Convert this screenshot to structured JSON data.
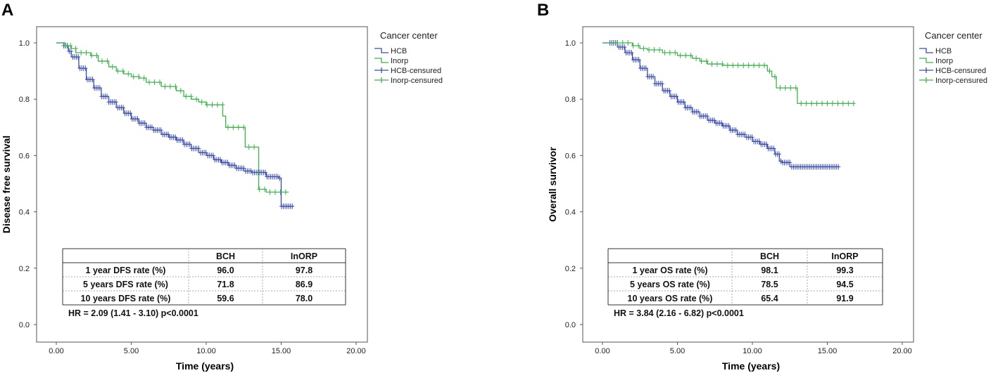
{
  "chart_data": [
    {
      "type": "line",
      "subtype": "kaplan-meier",
      "panel_label": "A",
      "xlabel": "Time (years)",
      "ylabel": "Disease free survival",
      "xlim": [
        0,
        20
      ],
      "ylim": [
        0,
        1.05
      ],
      "x_ticks": [
        "0.00",
        "5.00",
        "10.00",
        "15.00",
        "20.00"
      ],
      "y_ticks": [
        "0.0",
        "0.2",
        "0.4",
        "0.6",
        "0.8",
        "1.0"
      ],
      "legend": {
        "title": "Cancer center",
        "position": "top-right-outside",
        "entries": [
          "HCB",
          "Inorp",
          "HCB-censured",
          "Inorp-censured"
        ]
      },
      "series": [
        {
          "name": "HCB",
          "color": "#3a4cb1",
          "x": [
            0,
            0.5,
            0.8,
            1.0,
            1.5,
            2.0,
            2.5,
            3.0,
            3.5,
            4.0,
            4.5,
            5.0,
            5.5,
            6.0,
            6.5,
            7.0,
            7.5,
            8.0,
            8.5,
            9.0,
            9.5,
            10.0,
            10.5,
            11.0,
            11.5,
            12.0,
            12.5,
            13.0,
            13.5,
            14.0,
            14.8,
            15.0,
            15.8
          ],
          "y": [
            1.0,
            0.99,
            0.97,
            0.95,
            0.91,
            0.87,
            0.84,
            0.81,
            0.79,
            0.77,
            0.75,
            0.73,
            0.715,
            0.7,
            0.69,
            0.675,
            0.665,
            0.655,
            0.64,
            0.625,
            0.61,
            0.6,
            0.585,
            0.575,
            0.565,
            0.555,
            0.545,
            0.54,
            0.54,
            0.525,
            0.52,
            0.42,
            0.42
          ]
        },
        {
          "name": "Inorp",
          "color": "#3cb44b",
          "x": [
            0,
            0.6,
            1.0,
            1.3,
            2.0,
            2.3,
            2.8,
            3.5,
            4.0,
            4.5,
            5.0,
            5.5,
            6.0,
            7.0,
            8.0,
            8.5,
            9.0,
            9.5,
            10.0,
            10.8,
            11.1,
            11.3,
            11.8,
            12.6,
            13.5,
            14.0,
            15.5
          ],
          "y": [
            1.0,
            0.99,
            0.98,
            0.965,
            0.965,
            0.955,
            0.935,
            0.915,
            0.9,
            0.89,
            0.88,
            0.875,
            0.86,
            0.845,
            0.83,
            0.81,
            0.8,
            0.79,
            0.78,
            0.78,
            0.74,
            0.7,
            0.7,
            0.63,
            0.48,
            0.47,
            0.47
          ]
        }
      ],
      "table": {
        "headers": [
          "",
          "BCH",
          "InORP"
        ],
        "rows": [
          [
            "1 year DFS rate (%)",
            "96.0",
            "97.8"
          ],
          [
            "5 years DFS rate (%)",
            "71.8",
            "86.9"
          ],
          [
            "10 years DFS rate (%)",
            "59.6",
            "78.0"
          ]
        ],
        "footer": "HR = 2.09 (1.41 - 3.10) p<0.0001"
      }
    },
    {
      "type": "line",
      "subtype": "kaplan-meier",
      "panel_label": "B",
      "xlabel": "Time (years)",
      "ylabel": "Overall survivor",
      "xlim": [
        0,
        20
      ],
      "ylim": [
        0,
        1.05
      ],
      "x_ticks": [
        "0.00",
        "5.00",
        "10.00",
        "15.00",
        "20.00"
      ],
      "y_ticks": [
        "0.0",
        "0.2",
        "0.4",
        "0.6",
        "0.8",
        "1.0"
      ],
      "legend": {
        "title": "Cancer center",
        "position": "top-right-outside",
        "entries": [
          "HCB",
          "Inorp",
          "HCB-censured",
          "Inorp-censured"
        ]
      },
      "series": [
        {
          "name": "HCB",
          "color": "#3a4cb1",
          "x": [
            0,
            0.5,
            1.0,
            1.5,
            2.0,
            2.5,
            3.0,
            3.5,
            4.0,
            4.5,
            5.0,
            5.5,
            6.0,
            6.5,
            7.0,
            7.5,
            8.0,
            8.5,
            9.0,
            9.5,
            10.0,
            10.5,
            11.0,
            11.5,
            11.8,
            12.0,
            12.5,
            13.0,
            14.0,
            15.0,
            15.8
          ],
          "y": [
            1.0,
            1.0,
            0.985,
            0.965,
            0.94,
            0.91,
            0.88,
            0.855,
            0.83,
            0.81,
            0.79,
            0.77,
            0.755,
            0.74,
            0.725,
            0.715,
            0.705,
            0.69,
            0.675,
            0.665,
            0.65,
            0.64,
            0.625,
            0.605,
            0.58,
            0.575,
            0.56,
            0.56,
            0.56,
            0.56,
            0.56
          ]
        },
        {
          "name": "Inorp",
          "color": "#3cb44b",
          "x": [
            0,
            1.0,
            2.0,
            2.5,
            3.0,
            4.0,
            5.0,
            6.0,
            6.5,
            7.0,
            8.0,
            9.0,
            10.0,
            11.0,
            11.3,
            11.6,
            12.5,
            13.0,
            15.0,
            16.0,
            16.8
          ],
          "y": [
            1.0,
            1.0,
            0.99,
            0.98,
            0.975,
            0.965,
            0.955,
            0.945,
            0.935,
            0.925,
            0.92,
            0.92,
            0.92,
            0.9,
            0.88,
            0.84,
            0.84,
            0.785,
            0.785,
            0.785,
            0.785
          ]
        }
      ],
      "table": {
        "headers": [
          "",
          "BCH",
          "InORP"
        ],
        "rows": [
          [
            "1 year OS rate (%)",
            "98.1",
            "99.3"
          ],
          [
            "5 years OS rate (%)",
            "78.5",
            "94.5"
          ],
          [
            "10 years OS rate (%)",
            "65.4",
            "91.9"
          ]
        ],
        "footer": "HR = 3.84 (2.16 - 6.82) p<0.0001"
      }
    }
  ]
}
